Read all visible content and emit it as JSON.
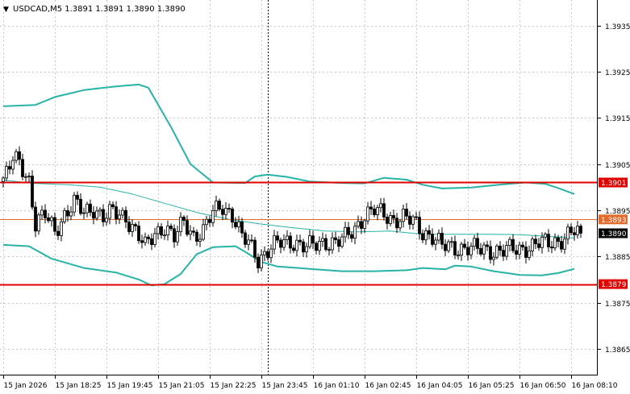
{
  "header": {
    "arrow": "▼",
    "symbol_info": "USDCAD,M5  1.3891 1.3891 1.3890 1.3890"
  },
  "colors": {
    "background": "#ffffff",
    "grid": "#c8c8c8",
    "candle": "#000000",
    "band": "#27b3a6",
    "middle": "#27b3a6",
    "support_resistance": "#e00000",
    "pivot": "#e36b2c",
    "current_price_label": "#000000"
  },
  "chart_data": {
    "type": "candlestick",
    "symbol": "USDCAD",
    "timeframe": "M5",
    "ohlc_header": {
      "open": 1.3891,
      "high": 1.3891,
      "low": 1.389,
      "close": 1.389
    },
    "y_ticks": [
      "1.3935",
      "1.3925",
      "1.3915",
      "1.3905",
      "1.3895",
      "1.3885",
      "1.3875",
      "1.3865"
    ],
    "y_tick_values": [
      1.3935,
      1.3925,
      1.3915,
      1.3905,
      1.3895,
      1.3885,
      1.3875,
      1.3865
    ],
    "ylim": [
      1.38594,
      1.39405
    ],
    "x_labels": [
      "15 Jan 2026",
      "15 Jan 18:25",
      "15 Jan 19:45",
      "15 Jan 21:05",
      "15 Jan 22:25",
      "15 Jan 23:45",
      "16 Jan 01:10",
      "16 Jan 02:45",
      "16 Jan 04:05",
      "16 Jan 05:25",
      "16 Jan 06:50",
      "16 Jan 08:10"
    ],
    "x_label_bars": [
      0,
      16,
      32,
      48,
      64,
      80,
      96,
      112,
      128,
      144,
      160,
      176
    ],
    "bar_count": 180,
    "separator_bar": 82,
    "grid": true,
    "levels": [
      {
        "label": "1.3901",
        "value": 1.3901,
        "kind": "resistance"
      },
      {
        "label": "1.3893",
        "value": 1.3893,
        "kind": "pivot"
      },
      {
        "label": "1.3879",
        "value": 1.3879,
        "kind": "support"
      }
    ],
    "current_price": {
      "label": "1.3890",
      "value": 1.389
    },
    "bollinger": {
      "upper": [
        [
          0,
          1.39175
        ],
        [
          10,
          1.39178
        ],
        [
          16,
          1.39195
        ],
        [
          25,
          1.3921
        ],
        [
          35,
          1.39218
        ],
        [
          42,
          1.39222
        ],
        [
          45,
          1.39215
        ],
        [
          52,
          1.3913
        ],
        [
          58,
          1.3905
        ],
        [
          65,
          1.3901
        ],
        [
          75,
          1.39009
        ],
        [
          78,
          1.39023
        ],
        [
          82,
          1.39027
        ],
        [
          88,
          1.39022
        ],
        [
          95,
          1.39012
        ],
        [
          105,
          1.39009
        ],
        [
          112,
          1.39008
        ],
        [
          118,
          1.3902
        ],
        [
          125,
          1.39016
        ],
        [
          130,
          1.39005
        ],
        [
          136,
          1.38997
        ],
        [
          145,
          1.38999
        ],
        [
          155,
          1.39006
        ],
        [
          162,
          1.3901
        ],
        [
          168,
          1.39007
        ],
        [
          172,
          1.38998
        ],
        [
          177,
          1.38985
        ]
      ],
      "middle": [
        [
          0,
          1.39015
        ],
        [
          10,
          1.39008
        ],
        [
          20,
          1.39005
        ],
        [
          30,
          1.39
        ],
        [
          40,
          1.38985
        ],
        [
          50,
          1.38965
        ],
        [
          60,
          1.38945
        ],
        [
          70,
          1.3893
        ],
        [
          80,
          1.3892
        ],
        [
          90,
          1.38912
        ],
        [
          100,
          1.38905
        ],
        [
          110,
          1.38903
        ],
        [
          120,
          1.38905
        ],
        [
          130,
          1.38898
        ],
        [
          140,
          1.38898
        ],
        [
          150,
          1.38898
        ],
        [
          160,
          1.38897
        ],
        [
          170,
          1.38893
        ],
        [
          177,
          1.3889
        ]
      ],
      "lower": [
        [
          0,
          1.38875
        ],
        [
          8,
          1.38872
        ],
        [
          15,
          1.38845
        ],
        [
          25,
          1.38825
        ],
        [
          35,
          1.38815
        ],
        [
          42,
          1.388
        ],
        [
          46,
          1.38787
        ],
        [
          50,
          1.3879
        ],
        [
          55,
          1.38812
        ],
        [
          60,
          1.38855
        ],
        [
          65,
          1.3887
        ],
        [
          72,
          1.38872
        ],
        [
          75,
          1.3886
        ],
        [
          80,
          1.38838
        ],
        [
          85,
          1.38828
        ],
        [
          95,
          1.38823
        ],
        [
          105,
          1.38818
        ],
        [
          115,
          1.38818
        ],
        [
          125,
          1.3882
        ],
        [
          130,
          1.38825
        ],
        [
          137,
          1.38822
        ],
        [
          140,
          1.3883
        ],
        [
          145,
          1.38828
        ],
        [
          152,
          1.38818
        ],
        [
          160,
          1.3881
        ],
        [
          167,
          1.38809
        ],
        [
          172,
          1.38814
        ],
        [
          177,
          1.38823
        ]
      ]
    },
    "price_path": [
      [
        0,
        1.39012
      ],
      [
        3,
        1.3906
      ],
      [
        5,
        1.39055
      ],
      [
        8,
        1.39015
      ],
      [
        10,
        1.3892
      ],
      [
        13,
        1.3894
      ],
      [
        16,
        1.38905
      ],
      [
        19,
        1.3894
      ],
      [
        22,
        1.38965
      ],
      [
        25,
        1.38945
      ],
      [
        28,
        1.38955
      ],
      [
        31,
        1.38935
      ],
      [
        34,
        1.38945
      ],
      [
        38,
        1.38935
      ],
      [
        41,
        1.38905
      ],
      [
        44,
        1.3887
      ],
      [
        47,
        1.389
      ],
      [
        50,
        1.38915
      ],
      [
        53,
        1.3889
      ],
      [
        56,
        1.38925
      ],
      [
        59,
        1.38895
      ],
      [
        62,
        1.38905
      ],
      [
        65,
        1.38945
      ],
      [
        68,
        1.3896
      ],
      [
        71,
        1.3894
      ],
      [
        74,
        1.3889
      ],
      [
        76,
        1.3888
      ],
      [
        79,
        1.38845
      ],
      [
        81,
        1.38855
      ],
      [
        83,
        1.3887
      ],
      [
        86,
        1.3888
      ],
      [
        90,
        1.38882
      ],
      [
        94,
        1.3887
      ],
      [
        97,
        1.38875
      ],
      [
        100,
        1.38882
      ],
      [
        103,
        1.3888
      ],
      [
        106,
        1.3889
      ],
      [
        109,
        1.3891
      ],
      [
        112,
        1.3894
      ],
      [
        115,
        1.3895
      ],
      [
        118,
        1.3894
      ],
      [
        121,
        1.3893
      ],
      [
        124,
        1.38935
      ],
      [
        127,
        1.38925
      ],
      [
        130,
        1.38902
      ],
      [
        133,
        1.38895
      ],
      [
        136,
        1.38872
      ],
      [
        140,
        1.38868
      ],
      [
        144,
        1.3887
      ],
      [
        148,
        1.38864
      ],
      [
        152,
        1.38862
      ],
      [
        156,
        1.38865
      ],
      [
        160,
        1.38864
      ],
      [
        163,
        1.38872
      ],
      [
        166,
        1.3888
      ],
      [
        169,
        1.38877
      ],
      [
        172,
        1.38883
      ],
      [
        175,
        1.38898
      ],
      [
        177,
        1.38905
      ],
      [
        179,
        1.38895
      ]
    ]
  }
}
